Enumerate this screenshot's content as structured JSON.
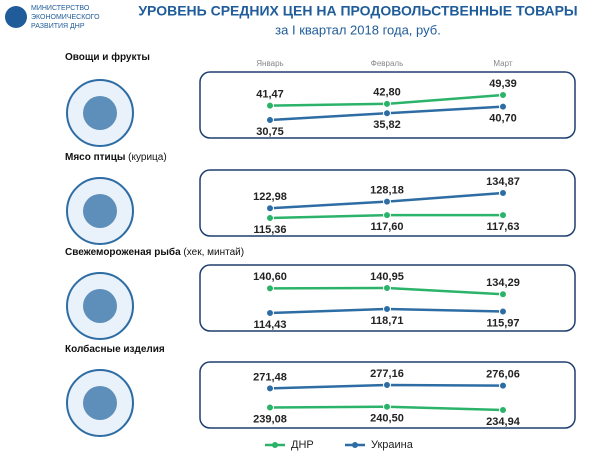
{
  "header": {
    "title": "УРОВЕНЬ СРЕДНИХ ЦЕН НА ПРОДОВОЛЬСТВЕННЫЕ ТОВАРЫ",
    "subtitle": "за I квартал 2018 года, руб.",
    "logo_lines": [
      "МИНИСТЕРСТВО",
      "ЭКОНОМИЧЕСКОГО",
      "РАЗВИТИЯ ДНР"
    ]
  },
  "chart_data": [
    {
      "type": "line",
      "title": "Овощи и фрукты",
      "categories": [
        "Январь",
        "Февраль",
        "Март"
      ],
      "series": [
        {
          "name": "ДНР",
          "color": "#2bb36a",
          "values": [
            41.47,
            42.8,
            49.39
          ],
          "value_labels": [
            "41,47",
            "42,80",
            "49,39"
          ]
        },
        {
          "name": "Украина",
          "color": "#2e6da4",
          "values": [
            30.75,
            35.82,
            40.7
          ],
          "value_labels": [
            "30,75",
            "35,82",
            "40,70"
          ]
        }
      ]
    },
    {
      "type": "line",
      "title": "Мясо птицы",
      "subtitle": "(курица)",
      "series": [
        {
          "color": "#2bb36a",
          "values": [
            115.36,
            117.6,
            117.63
          ],
          "value_labels": [
            "115,36",
            "117,60",
            "117,63"
          ]
        },
        {
          "color": "#2e6da4",
          "values": [
            122.98,
            128.18,
            134.87
          ],
          "value_labels": [
            "122,98",
            "128,18",
            "134,87"
          ]
        }
      ]
    },
    {
      "type": "line",
      "title": "Свежемороженая рыба",
      "subtitle": "(хек, минтай)",
      "series": [
        {
          "color": "#2bb36a",
          "values": [
            140.6,
            140.95,
            134.29
          ],
          "value_labels": [
            "140,60",
            "140,95",
            "134,29"
          ]
        },
        {
          "color": "#2e6da4",
          "values": [
            114.43,
            118.71,
            115.97
          ],
          "value_labels": [
            "114,43",
            "118,71",
            "115,97"
          ]
        }
      ]
    },
    {
      "type": "line",
      "title": "Колбасные изделия",
      "series": [
        {
          "color": "#2bb36a",
          "values": [
            239.08,
            240.5,
            234.94
          ],
          "value_labels": [
            "239,08",
            "240,50",
            "234,94"
          ]
        },
        {
          "color": "#2e6da4",
          "values": [
            271.48,
            277.16,
            276.06
          ],
          "value_labels": [
            "271,48",
            "277,16",
            "276,06"
          ]
        }
      ]
    }
  ]
}
